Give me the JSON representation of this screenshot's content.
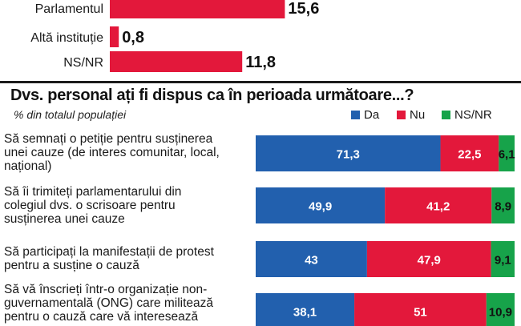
{
  "chart_data": [
    {
      "type": "bar",
      "orientation": "horizontal",
      "categories": [
        "Parlamentul",
        "Altă instituție",
        "NS/NR"
      ],
      "values": [
        15.6,
        0.8,
        11.8
      ],
      "value_labels": [
        "15,6",
        "0,8",
        "11,8"
      ],
      "color": "#e3183b"
    },
    {
      "type": "bar",
      "stacked": true,
      "orientation": "horizontal",
      "title": "Dvs. personal ați fi dispus ca în perioada următoare...?",
      "subtitle": "% din totalul populației",
      "categories": [
        "Să semnați o petiție pentru susținerea unei cauze (de interes comunitar, local, național)",
        "Să îi trimiteți parlamentarului din colegiul dvs. o scrisoare pentru susținerea unei cauze",
        "Să participați la manifestații de protest pentru a susține o cauză",
        "Să vă înscrieți într-o organizație non-guvernamentală (ONG) care militează pentru o cauză care vă interesează"
      ],
      "category_lines": [
        [
          "Să semnați o petiție pentru susținerea",
          "unei cauze (de interes comunitar, local,",
          "național)"
        ],
        [
          "Să îi trimiteți parlamentarului din",
          "colegiul dvs. o scrisoare pentru",
          "susținerea unei cauze"
        ],
        [
          "Să participați la manifestații de protest",
          "pentru a susține o cauză"
        ],
        [
          "Să vă înscrieți într-o organizație non-",
          "guvernamentală (ONG) care militează",
          "pentru o cauză care vă interesează"
        ]
      ],
      "series": [
        {
          "name": "Da",
          "color": "#2260ae",
          "values": [
            71.3,
            49.9,
            43,
            38.1
          ],
          "labels": [
            "71,3",
            "49,9",
            "43",
            "38,1"
          ]
        },
        {
          "name": "Nu",
          "color": "#e3183b",
          "values": [
            22.5,
            41.2,
            47.9,
            51
          ],
          "labels": [
            "22,5",
            "41,2",
            "47,9",
            "51"
          ]
        },
        {
          "name": "NS/NR",
          "color": "#17a34a",
          "values": [
            6.1,
            8.9,
            9.1,
            10.9
          ],
          "labels": [
            "6,1",
            "8,9",
            "9,1",
            "10,9"
          ]
        }
      ],
      "legend_position": "top-right"
    }
  ]
}
